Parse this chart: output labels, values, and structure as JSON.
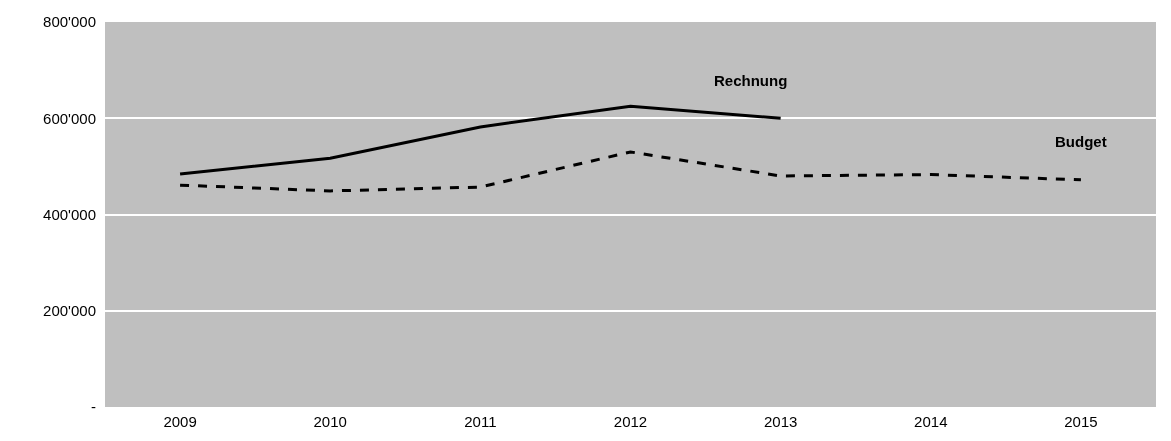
{
  "chart_data": {
    "type": "line",
    "categories": [
      "2009",
      "2010",
      "2011",
      "2012",
      "2013",
      "2014",
      "2015"
    ],
    "series": [
      {
        "name": "Rechnung",
        "color": "#000000",
        "line_style": "solid",
        "values": [
          484000,
          517000,
          582000,
          625000,
          600000,
          null,
          null
        ]
      },
      {
        "name": "Budget",
        "color": "#000000",
        "line_style": "dashed",
        "values": [
          461000,
          449000,
          457000,
          530000,
          480000,
          483000,
          472000
        ]
      }
    ],
    "ylim": [
      0,
      800000
    ],
    "yticks": [
      {
        "value": 0,
        "label": "-"
      },
      {
        "value": 200000,
        "label": "200'000"
      },
      {
        "value": 400000,
        "label": "400'000"
      },
      {
        "value": 600000,
        "label": "600'000"
      },
      {
        "value": 800000,
        "label": "800'000"
      }
    ],
    "grid": "y",
    "legend": false,
    "marker": "none"
  }
}
